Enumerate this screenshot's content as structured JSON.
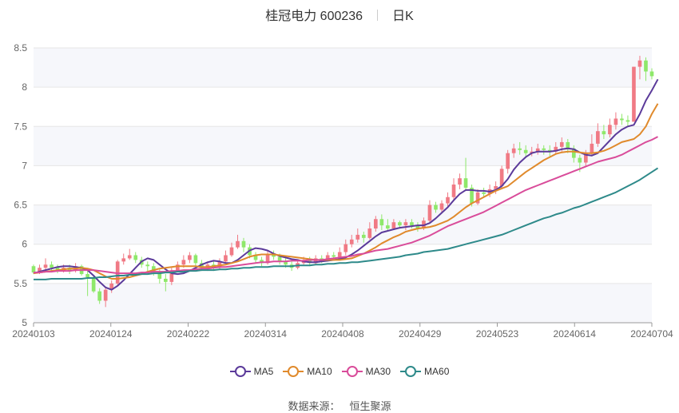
{
  "header": {
    "stock_name": "桂冠电力 600236",
    "period": "日K"
  },
  "legend": [
    {
      "name": "MA5",
      "color": "#5b3a9a"
    },
    {
      "name": "MA10",
      "color": "#e08a2c"
    },
    {
      "name": "MA30",
      "color": "#d94c9a"
    },
    {
      "name": "MA60",
      "color": "#2e8a8a"
    }
  ],
  "footer": {
    "source_label": "数据来源：",
    "source_name": "恒生聚源"
  },
  "colors": {
    "up": "#f07a85",
    "down": "#8ee86a",
    "grid": "#e6e6e6",
    "band": "#f6f7fb"
  },
  "chart_data": {
    "type": "candlestick",
    "title": "桂冠电力 600236",
    "period": "日K",
    "ylim": [
      5,
      8.5
    ],
    "y_ticks": [
      5,
      5.5,
      6,
      6.5,
      7,
      7.5,
      8,
      8.5
    ],
    "x_tick_labels": [
      "20240103",
      "20240124",
      "20240222",
      "20240314",
      "20240408",
      "20240429",
      "20240523",
      "20240614",
      "20240704"
    ],
    "grid": true,
    "legend_position": "bottom",
    "candles": [
      [
        5.72,
        5.64,
        5.74,
        5.62
      ],
      [
        5.64,
        5.7,
        5.74,
        5.62
      ],
      [
        5.7,
        5.74,
        5.82,
        5.68
      ],
      [
        5.74,
        5.7,
        5.78,
        5.66
      ],
      [
        5.7,
        5.66,
        5.74,
        5.63
      ],
      [
        5.66,
        5.7,
        5.74,
        5.64
      ],
      [
        5.7,
        5.66,
        5.74,
        5.62
      ],
      [
        5.66,
        5.72,
        5.76,
        5.64
      ],
      [
        5.72,
        5.62,
        5.74,
        5.6
      ],
      [
        5.62,
        5.58,
        5.66,
        5.34
      ],
      [
        5.58,
        5.4,
        5.6,
        5.38
      ],
      [
        5.4,
        5.28,
        5.44,
        5.24
      ],
      [
        5.28,
        5.42,
        5.46,
        5.2
      ],
      [
        5.42,
        5.5,
        5.54,
        5.38
      ],
      [
        5.5,
        5.78,
        5.8,
        5.48
      ],
      [
        5.78,
        5.82,
        5.88,
        5.74
      ],
      [
        5.82,
        5.86,
        5.94,
        5.8
      ],
      [
        5.86,
        5.8,
        5.9,
        5.76
      ],
      [
        5.8,
        5.74,
        5.84,
        5.7
      ],
      [
        5.74,
        5.72,
        5.78,
        5.66
      ],
      [
        5.72,
        5.64,
        5.76,
        5.6
      ],
      [
        5.64,
        5.56,
        5.68,
        5.5
      ],
      [
        5.56,
        5.52,
        5.62,
        5.4
      ],
      [
        5.52,
        5.66,
        5.7,
        5.48
      ],
      [
        5.66,
        5.74,
        5.78,
        5.64
      ],
      [
        5.74,
        5.8,
        5.86,
        5.7
      ],
      [
        5.8,
        5.86,
        5.9,
        5.76
      ],
      [
        5.86,
        5.76,
        5.88,
        5.72
      ],
      [
        5.76,
        5.7,
        5.8,
        5.66
      ],
      [
        5.7,
        5.74,
        5.78,
        5.66
      ],
      [
        5.74,
        5.7,
        5.78,
        5.66
      ],
      [
        5.7,
        5.78,
        5.82,
        5.68
      ],
      [
        5.78,
        5.86,
        5.92,
        5.76
      ],
      [
        5.86,
        5.96,
        6.02,
        5.84
      ],
      [
        5.96,
        6.04,
        6.12,
        5.94
      ],
      [
        6.04,
        5.96,
        6.08,
        5.9
      ],
      [
        5.96,
        5.86,
        6.0,
        5.82
      ],
      [
        5.86,
        5.8,
        5.9,
        5.76
      ],
      [
        5.8,
        5.76,
        5.84,
        5.72
      ],
      [
        5.76,
        5.88,
        5.92,
        5.74
      ],
      [
        5.88,
        5.84,
        5.92,
        5.8
      ],
      [
        5.84,
        5.78,
        5.88,
        5.74
      ],
      [
        5.78,
        5.74,
        5.82,
        5.7
      ],
      [
        5.74,
        5.7,
        5.78,
        5.66
      ],
      [
        5.7,
        5.76,
        5.8,
        5.68
      ],
      [
        5.76,
        5.8,
        5.84,
        5.74
      ],
      [
        5.8,
        5.76,
        5.84,
        5.72
      ],
      [
        5.76,
        5.82,
        5.86,
        5.74
      ],
      [
        5.82,
        5.8,
        5.86,
        5.76
      ],
      [
        5.8,
        5.86,
        5.9,
        5.78
      ],
      [
        5.86,
        5.84,
        5.9,
        5.8
      ],
      [
        5.84,
        5.9,
        5.96,
        5.82
      ],
      [
        5.9,
        6.0,
        6.06,
        5.86
      ],
      [
        6.0,
        6.06,
        6.12,
        5.96
      ],
      [
        6.06,
        6.12,
        6.2,
        6.02
      ],
      [
        6.12,
        6.08,
        6.16,
        6.02
      ],
      [
        6.08,
        6.2,
        6.28,
        6.06
      ],
      [
        6.2,
        6.32,
        6.36,
        6.16
      ],
      [
        6.32,
        6.24,
        6.38,
        6.18
      ],
      [
        6.24,
        6.2,
        6.32,
        6.16
      ],
      [
        6.2,
        6.28,
        6.32,
        6.18
      ],
      [
        6.28,
        6.24,
        6.3,
        6.2
      ],
      [
        6.24,
        6.28,
        6.32,
        6.18
      ],
      [
        6.28,
        6.24,
        6.32,
        6.2
      ],
      [
        6.24,
        6.2,
        6.28,
        6.16
      ],
      [
        6.2,
        6.3,
        6.34,
        6.18
      ],
      [
        6.3,
        6.5,
        6.56,
        6.28
      ],
      [
        6.5,
        6.44,
        6.54,
        6.4
      ],
      [
        6.44,
        6.52,
        6.56,
        6.4
      ],
      [
        6.52,
        6.6,
        6.66,
        6.48
      ],
      [
        6.6,
        6.76,
        6.84,
        6.56
      ],
      [
        6.76,
        6.84,
        6.9,
        6.7
      ],
      [
        6.84,
        6.72,
        7.1,
        6.68
      ],
      [
        6.72,
        6.52,
        6.76,
        6.48
      ],
      [
        6.52,
        6.66,
        6.7,
        6.5
      ],
      [
        6.66,
        6.64,
        6.72,
        6.6
      ],
      [
        6.64,
        6.7,
        6.76,
        6.6
      ],
      [
        6.7,
        6.74,
        6.8,
        6.64
      ],
      [
        6.74,
        6.96,
        7.0,
        6.7
      ],
      [
        6.96,
        7.16,
        7.2,
        6.9
      ],
      [
        7.16,
        7.22,
        7.28,
        7.1
      ],
      [
        7.22,
        7.2,
        7.3,
        7.14
      ],
      [
        7.2,
        7.16,
        7.26,
        7.1
      ],
      [
        7.16,
        7.18,
        7.24,
        7.12
      ],
      [
        7.18,
        7.22,
        7.28,
        7.14
      ],
      [
        7.22,
        7.2,
        7.26,
        7.14
      ],
      [
        7.2,
        7.18,
        7.26,
        7.12
      ],
      [
        7.18,
        7.24,
        7.3,
        7.14
      ],
      [
        7.24,
        7.3,
        7.36,
        7.18
      ],
      [
        7.3,
        7.22,
        7.34,
        7.16
      ],
      [
        7.22,
        7.1,
        7.26,
        7.04
      ],
      [
        7.1,
        7.04,
        7.14,
        6.92
      ],
      [
        7.04,
        7.16,
        7.2,
        6.98
      ],
      [
        7.16,
        7.28,
        7.4,
        7.12
      ],
      [
        7.28,
        7.44,
        7.54,
        7.24
      ],
      [
        7.44,
        7.4,
        7.52,
        7.34
      ],
      [
        7.4,
        7.52,
        7.6,
        7.36
      ],
      [
        7.52,
        7.6,
        7.68,
        7.46
      ],
      [
        7.6,
        7.58,
        7.66,
        7.52
      ],
      [
        7.58,
        7.56,
        7.64,
        7.5
      ],
      [
        7.56,
        8.26,
        8.26,
        7.56
      ],
      [
        8.26,
        8.34,
        8.4,
        8.1
      ],
      [
        8.34,
        8.2,
        8.38,
        8.08
      ],
      [
        8.2,
        8.14,
        8.24,
        8.1
      ]
    ],
    "series": [
      {
        "name": "MA5",
        "values": [
          5.63,
          5.65,
          5.67,
          5.69,
          5.71,
          5.72,
          5.72,
          5.71,
          5.7,
          5.67,
          5.6,
          5.52,
          5.45,
          5.42,
          5.47,
          5.54,
          5.62,
          5.7,
          5.78,
          5.82,
          5.8,
          5.74,
          5.68,
          5.63,
          5.62,
          5.63,
          5.66,
          5.7,
          5.74,
          5.77,
          5.79,
          5.78,
          5.76,
          5.76,
          5.8,
          5.86,
          5.92,
          5.95,
          5.94,
          5.92,
          5.88,
          5.85,
          5.83,
          5.81,
          5.8,
          5.78,
          5.77,
          5.77,
          5.78,
          5.79,
          5.8,
          5.81,
          5.83,
          5.87,
          5.92,
          5.98,
          6.04,
          6.1,
          6.15,
          6.17,
          6.19,
          6.21,
          6.22,
          6.23,
          6.24,
          6.24,
          6.27,
          6.33,
          6.4,
          6.47,
          6.56,
          6.64,
          6.69,
          6.69,
          6.68,
          6.68,
          6.67,
          6.69,
          6.74,
          6.83,
          6.95,
          7.04,
          7.11,
          7.16,
          7.18,
          7.18,
          7.18,
          7.19,
          7.21,
          7.22,
          7.21,
          7.17,
          7.14,
          7.13,
          7.16,
          7.24,
          7.32,
          7.4,
          7.46,
          7.5,
          7.52,
          7.66,
          7.83,
          7.96,
          8.1
        ]
      },
      {
        "name": "MA10",
        "values": [
          5.63,
          5.64,
          5.65,
          5.66,
          5.67,
          5.68,
          5.69,
          5.69,
          5.7,
          5.69,
          5.67,
          5.63,
          5.59,
          5.56,
          5.56,
          5.57,
          5.58,
          5.6,
          5.62,
          5.65,
          5.67,
          5.69,
          5.7,
          5.71,
          5.72,
          5.72,
          5.72,
          5.72,
          5.71,
          5.71,
          5.72,
          5.73,
          5.74,
          5.76,
          5.78,
          5.81,
          5.84,
          5.86,
          5.87,
          5.87,
          5.87,
          5.86,
          5.85,
          5.84,
          5.83,
          5.82,
          5.81,
          5.8,
          5.8,
          5.8,
          5.8,
          5.8,
          5.81,
          5.82,
          5.85,
          5.88,
          5.92,
          5.96,
          6.01,
          6.05,
          6.09,
          6.12,
          6.16,
          6.18,
          6.2,
          6.21,
          6.22,
          6.24,
          6.27,
          6.3,
          6.35,
          6.41,
          6.47,
          6.52,
          6.56,
          6.6,
          6.64,
          6.68,
          6.71,
          6.74,
          6.8,
          6.86,
          6.92,
          6.97,
          7.02,
          7.07,
          7.11,
          7.15,
          7.17,
          7.18,
          7.18,
          7.17,
          7.16,
          7.16,
          7.17,
          7.19,
          7.22,
          7.26,
          7.3,
          7.32,
          7.34,
          7.4,
          7.5,
          7.66,
          7.79
        ]
      },
      {
        "name": "MA30",
        "values": [
          5.64,
          5.64,
          5.65,
          5.65,
          5.66,
          5.66,
          5.66,
          5.67,
          5.67,
          5.67,
          5.67,
          5.66,
          5.65,
          5.64,
          5.63,
          5.63,
          5.63,
          5.63,
          5.64,
          5.64,
          5.65,
          5.65,
          5.65,
          5.66,
          5.66,
          5.67,
          5.67,
          5.68,
          5.69,
          5.69,
          5.7,
          5.71,
          5.71,
          5.72,
          5.73,
          5.74,
          5.75,
          5.76,
          5.77,
          5.77,
          5.78,
          5.78,
          5.78,
          5.79,
          5.79,
          5.79,
          5.8,
          5.8,
          5.8,
          5.81,
          5.82,
          5.83,
          5.84,
          5.85,
          5.87,
          5.88,
          5.9,
          5.92,
          5.93,
          5.94,
          5.96,
          5.98,
          6.0,
          6.02,
          6.05,
          6.08,
          6.11,
          6.15,
          6.19,
          6.23,
          6.26,
          6.29,
          6.32,
          6.35,
          6.38,
          6.41,
          6.45,
          6.49,
          6.53,
          6.57,
          6.61,
          6.65,
          6.69,
          6.72,
          6.75,
          6.78,
          6.81,
          6.84,
          6.87,
          6.9,
          6.93,
          6.96,
          6.99,
          7.02,
          7.05,
          7.07,
          7.09,
          7.11,
          7.14,
          7.18,
          7.22,
          7.26,
          7.3,
          7.33,
          7.37
        ]
      },
      {
        "name": "MA60",
        "values": [
          5.55,
          5.55,
          5.55,
          5.56,
          5.56,
          5.56,
          5.56,
          5.56,
          5.56,
          5.57,
          5.57,
          5.58,
          5.58,
          5.59,
          5.6,
          5.6,
          5.61,
          5.61,
          5.62,
          5.62,
          5.63,
          5.63,
          5.64,
          5.64,
          5.65,
          5.65,
          5.66,
          5.66,
          5.67,
          5.67,
          5.67,
          5.68,
          5.68,
          5.69,
          5.69,
          5.7,
          5.7,
          5.71,
          5.71,
          5.71,
          5.72,
          5.72,
          5.72,
          5.72,
          5.73,
          5.73,
          5.73,
          5.74,
          5.74,
          5.75,
          5.75,
          5.76,
          5.76,
          5.77,
          5.77,
          5.78,
          5.79,
          5.8,
          5.81,
          5.82,
          5.83,
          5.84,
          5.86,
          5.87,
          5.88,
          5.9,
          5.91,
          5.92,
          5.93,
          5.94,
          5.96,
          5.98,
          6.0,
          6.02,
          6.04,
          6.06,
          6.08,
          6.1,
          6.12,
          6.15,
          6.18,
          6.21,
          6.24,
          6.27,
          6.3,
          6.33,
          6.35,
          6.38,
          6.4,
          6.43,
          6.46,
          6.48,
          6.51,
          6.54,
          6.57,
          6.6,
          6.63,
          6.66,
          6.7,
          6.74,
          6.78,
          6.82,
          6.87,
          6.92,
          6.97
        ]
      }
    ]
  }
}
